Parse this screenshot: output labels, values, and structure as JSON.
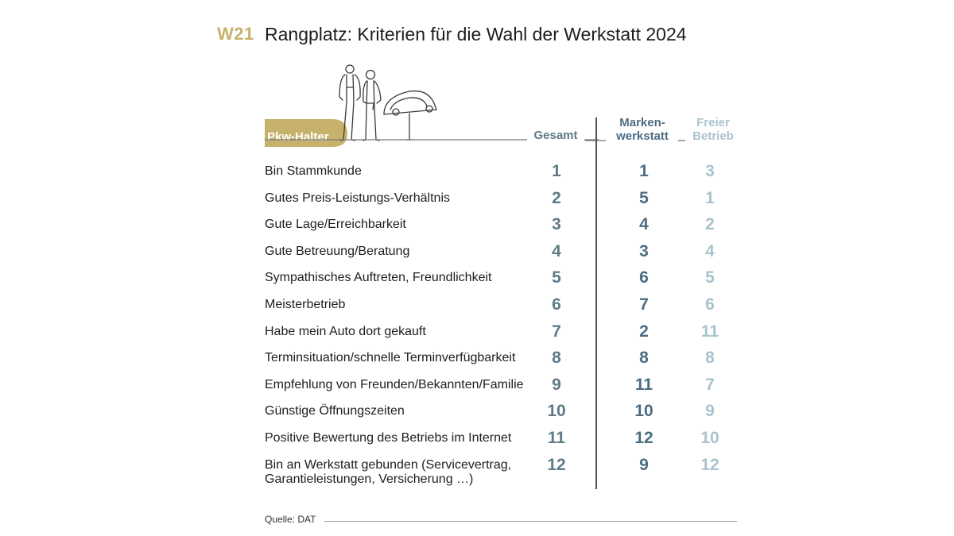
{
  "header": {
    "code": "W21",
    "title": "Rangplatz: Kriterien für die Wahl der Werkstatt 2024"
  },
  "chart_data": {
    "type": "table",
    "title": "Rangplatz: Kriterien für die Wahl der Werkstatt 2024",
    "group_label": "Pkw-Halter",
    "columns": [
      "Gesamt",
      "Marken-\nwerkstatt",
      "Freier\nBetrieb"
    ],
    "rows": [
      {
        "label": "Bin Stammkunde",
        "values": [
          1,
          1,
          3
        ]
      },
      {
        "label": "Gutes Preis-Leistungs-Verhältnis",
        "values": [
          2,
          5,
          1
        ]
      },
      {
        "label": "Gute Lage/Erreichbarkeit",
        "values": [
          3,
          4,
          2
        ]
      },
      {
        "label": "Gute Betreuung/Beratung",
        "values": [
          4,
          3,
          4
        ]
      },
      {
        "label": "Sympathisches Auftreten, Freundlichkeit",
        "values": [
          5,
          6,
          5
        ]
      },
      {
        "label": "Meisterbetrieb",
        "values": [
          6,
          7,
          6
        ]
      },
      {
        "label": "Habe mein Auto dort gekauft",
        "values": [
          7,
          2,
          11
        ]
      },
      {
        "label": "Terminsituation/schnelle Terminverfügbarkeit",
        "values": [
          8,
          8,
          8
        ]
      },
      {
        "label": "Empfehlung von Freunden/Bekannten/Familie",
        "values": [
          9,
          11,
          7
        ]
      },
      {
        "label": "Günstige Öffnungszeiten",
        "values": [
          10,
          10,
          9
        ]
      },
      {
        "label": "Positive Bewertung des Betriebs im Internet",
        "values": [
          11,
          12,
          10
        ]
      },
      {
        "label": "Bin an Werkstatt gebunden (Servicevertrag,\nGarantieleistungen, Versicherung …)",
        "values": [
          12,
          9,
          12
        ]
      }
    ]
  },
  "colors": {
    "accent_gold": "#c7b26c",
    "gesamt": "#5f7b86",
    "markenwerkstatt": "#4c6c82",
    "freier_betrieb": "#a9c3cd"
  },
  "footer": {
    "source": "Quelle: DAT"
  },
  "icons": {
    "illustration": "people-and-car-line-drawing-icon"
  }
}
